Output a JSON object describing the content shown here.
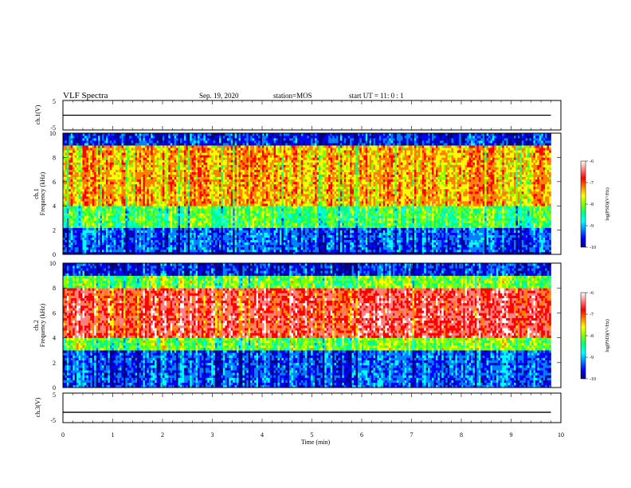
{
  "header": {
    "title": "VLF Spectra",
    "date": "Sep. 19, 2020",
    "station": "station=MOS",
    "start": "start UT =  11: 0  : 1"
  },
  "chart_data": [
    {
      "type": "line",
      "panel": "ch1-waveform",
      "ylabel": "ch.1(V)",
      "ylim": [
        -5,
        5
      ],
      "yticks": [
        "5",
        "-5"
      ],
      "x_range_min": [
        0,
        9.8
      ],
      "level": 0
    },
    {
      "type": "heatmap",
      "panel": "ch1-spectrogram",
      "ylabel": "Frequency (kHz)",
      "ylabel_prefix": "ch.1",
      "ylim": [
        0,
        10
      ],
      "yticks": [
        "0",
        "2",
        "4",
        "6",
        "8",
        "10"
      ],
      "colorbar": {
        "label": "log(PSD)(V²/Hz)",
        "range": [
          -10,
          -6
        ],
        "ticks": [
          "-6",
          "-7",
          "-8",
          "-9",
          "-10"
        ]
      },
      "colormap": [
        "#000080",
        "#0000ff",
        "#0080ff",
        "#00ffff",
        "#00ff80",
        "#80ff00",
        "#ffff00",
        "#ff8000",
        "#ff0000",
        "#ff8080",
        "#ffffff"
      ],
      "bands": [
        {
          "from": 0,
          "to": 0.3,
          "level": -10
        },
        {
          "from": 0.3,
          "to": 2.2,
          "level": -9.3
        },
        {
          "from": 2.2,
          "to": 4,
          "level": -8.2
        },
        {
          "from": 4,
          "to": 9,
          "level": -7.3
        },
        {
          "from": 9,
          "to": 10,
          "level": -9.5
        }
      ]
    },
    {
      "type": "heatmap",
      "panel": "ch2-spectrogram",
      "ylabel": "Frequency (kHz)",
      "ylabel_prefix": "ch.2",
      "ylim": [
        0,
        10
      ],
      "yticks": [
        "0",
        "2",
        "4",
        "6",
        "8",
        "10"
      ],
      "colorbar": {
        "label": "log(PSD)(V²/Hz)",
        "range": [
          -10,
          -6
        ],
        "ticks": [
          "-6",
          "-7",
          "-8",
          "-9",
          "-10"
        ]
      },
      "colormap": [
        "#000080",
        "#0000ff",
        "#0080ff",
        "#00ffff",
        "#00ff80",
        "#80ff00",
        "#ffff00",
        "#ff8000",
        "#ff0000",
        "#ff8080",
        "#ffffff"
      ],
      "bands": [
        {
          "from": 0,
          "to": 3,
          "level": -9.3
        },
        {
          "from": 3,
          "to": 4,
          "level": -8
        },
        {
          "from": 4,
          "to": 8,
          "level": -6.6
        },
        {
          "from": 8,
          "to": 9,
          "level": -8
        },
        {
          "from": 9,
          "to": 10,
          "level": -9.5
        }
      ]
    },
    {
      "type": "line",
      "panel": "ch3-waveform",
      "ylabel": "ch.3(V)",
      "ylim": [
        -5,
        5
      ],
      "yticks": [
        "5",
        "0",
        "-5"
      ],
      "x_range_min": [
        0,
        9.8
      ],
      "level": -1.5
    }
  ],
  "xaxis": {
    "label": "Time (min)",
    "range": [
      0,
      10
    ],
    "ticks": [
      "0",
      "1",
      "2",
      "3",
      "4",
      "5",
      "6",
      "7",
      "8",
      "9",
      "10"
    ]
  }
}
